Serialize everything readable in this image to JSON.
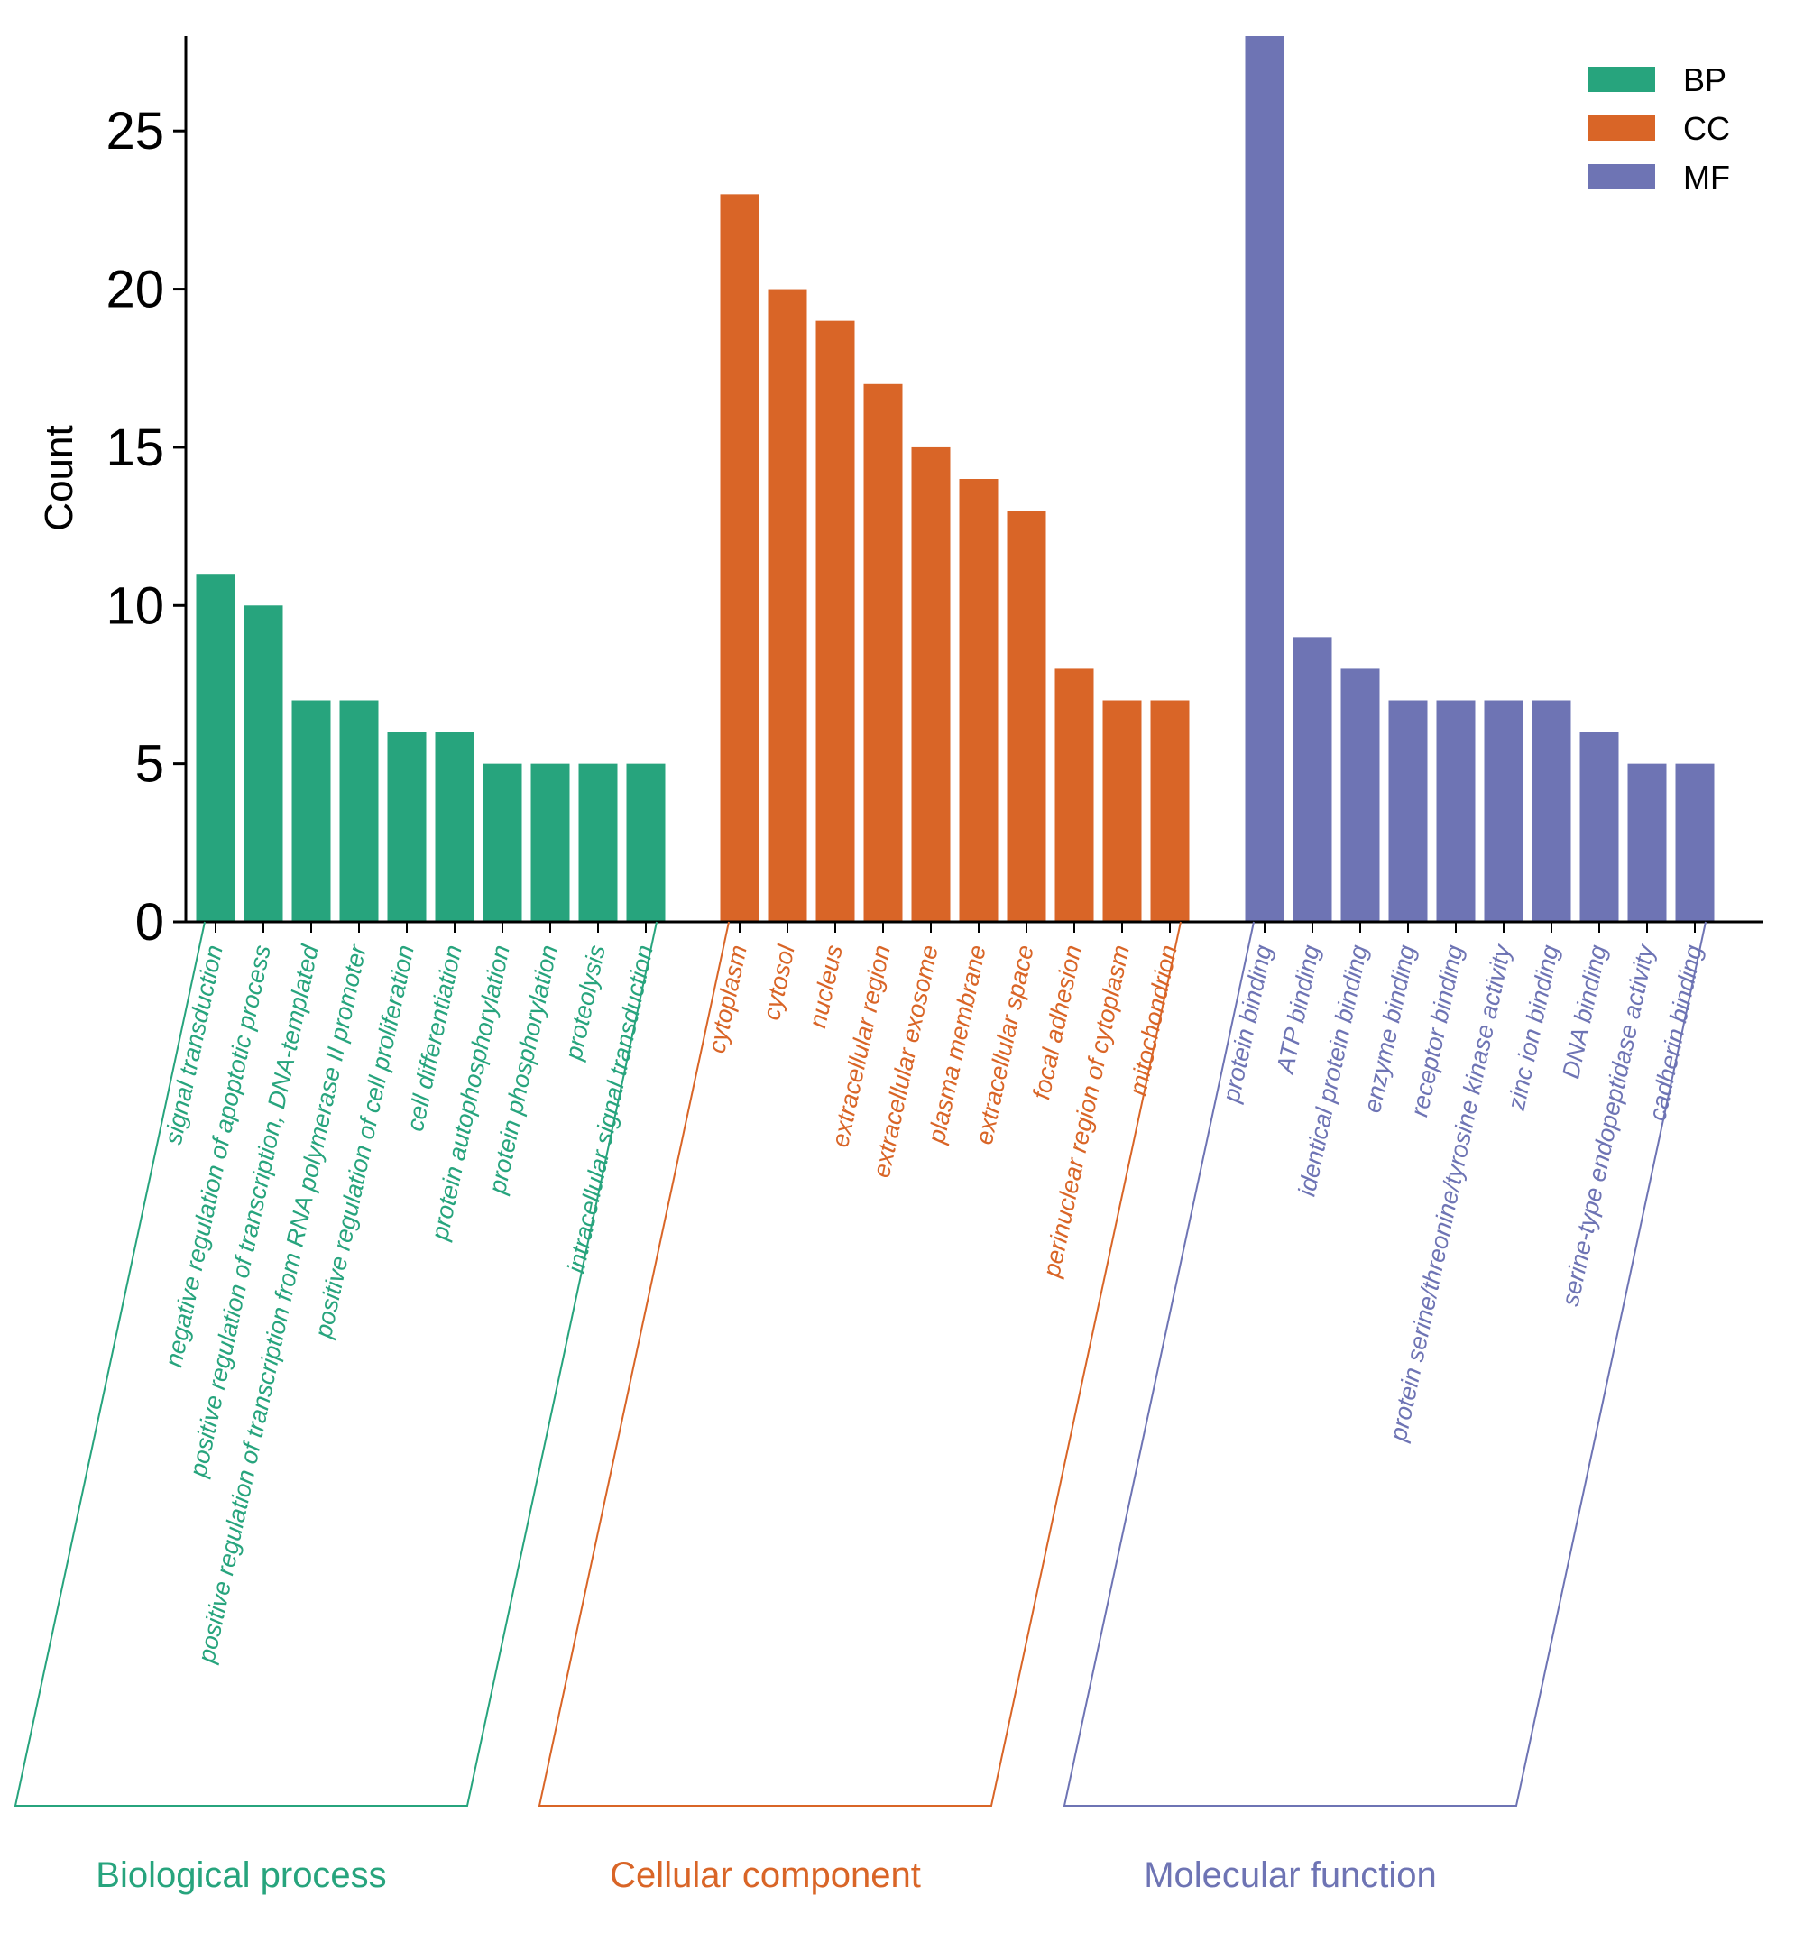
{
  "chart_data": {
    "type": "bar",
    "title": "",
    "xlabel": "",
    "ylabel": "Count",
    "ylim": [
      0,
      28
    ],
    "yticks": [
      0,
      5,
      10,
      15,
      20,
      25
    ],
    "legend": {
      "placement": "top-right",
      "entries": [
        {
          "key": "BP",
          "label": "BP",
          "color": "#27a47d"
        },
        {
          "key": "CC",
          "label": "CC",
          "color": "#d96527"
        },
        {
          "key": "MF",
          "label": "MF",
          "color": "#6e74b4"
        }
      ]
    },
    "groups": [
      {
        "key": "BP",
        "name": "Biological process",
        "color": "#27a47d",
        "categories": [
          "signal transduction",
          "negative regulation of apoptotic process",
          "positive regulation of transcription, DNA-templated",
          "positive regulation of transcription from RNA polymerase II promoter",
          "positive regulation of cell proliferation",
          "cell differentiation",
          "protein autophosphorylation",
          "protein phosphorylation",
          "proteolysis",
          "intracellular signal transduction"
        ],
        "values": [
          11,
          10,
          7,
          7,
          6,
          6,
          5,
          5,
          5,
          5
        ]
      },
      {
        "key": "CC",
        "name": "Cellular component",
        "color": "#d96527",
        "categories": [
          "cytoplasm",
          "cytosol",
          "nucleus",
          "extracellular region",
          "extracellular exosome",
          "plasma membrane",
          "extracellular space",
          "focal adhesion",
          "perinuclear region of cytoplasm",
          "mitochondrion"
        ],
        "values": [
          23,
          20,
          19,
          17,
          15,
          14,
          13,
          8,
          7,
          7
        ]
      },
      {
        "key": "MF",
        "name": "Molecular function",
        "color": "#6e74b4",
        "categories": [
          "protein binding",
          "ATP binding",
          "identical protein binding",
          "enzyme binding",
          "receptor binding",
          "protein serine/threonine/tyrosine kinase activity",
          "zinc ion binding",
          "DNA binding",
          "serine-type endopeptidase activity",
          "cadherin binding"
        ],
        "values": [
          28,
          9,
          8,
          7,
          7,
          7,
          7,
          6,
          5,
          5
        ]
      }
    ]
  }
}
